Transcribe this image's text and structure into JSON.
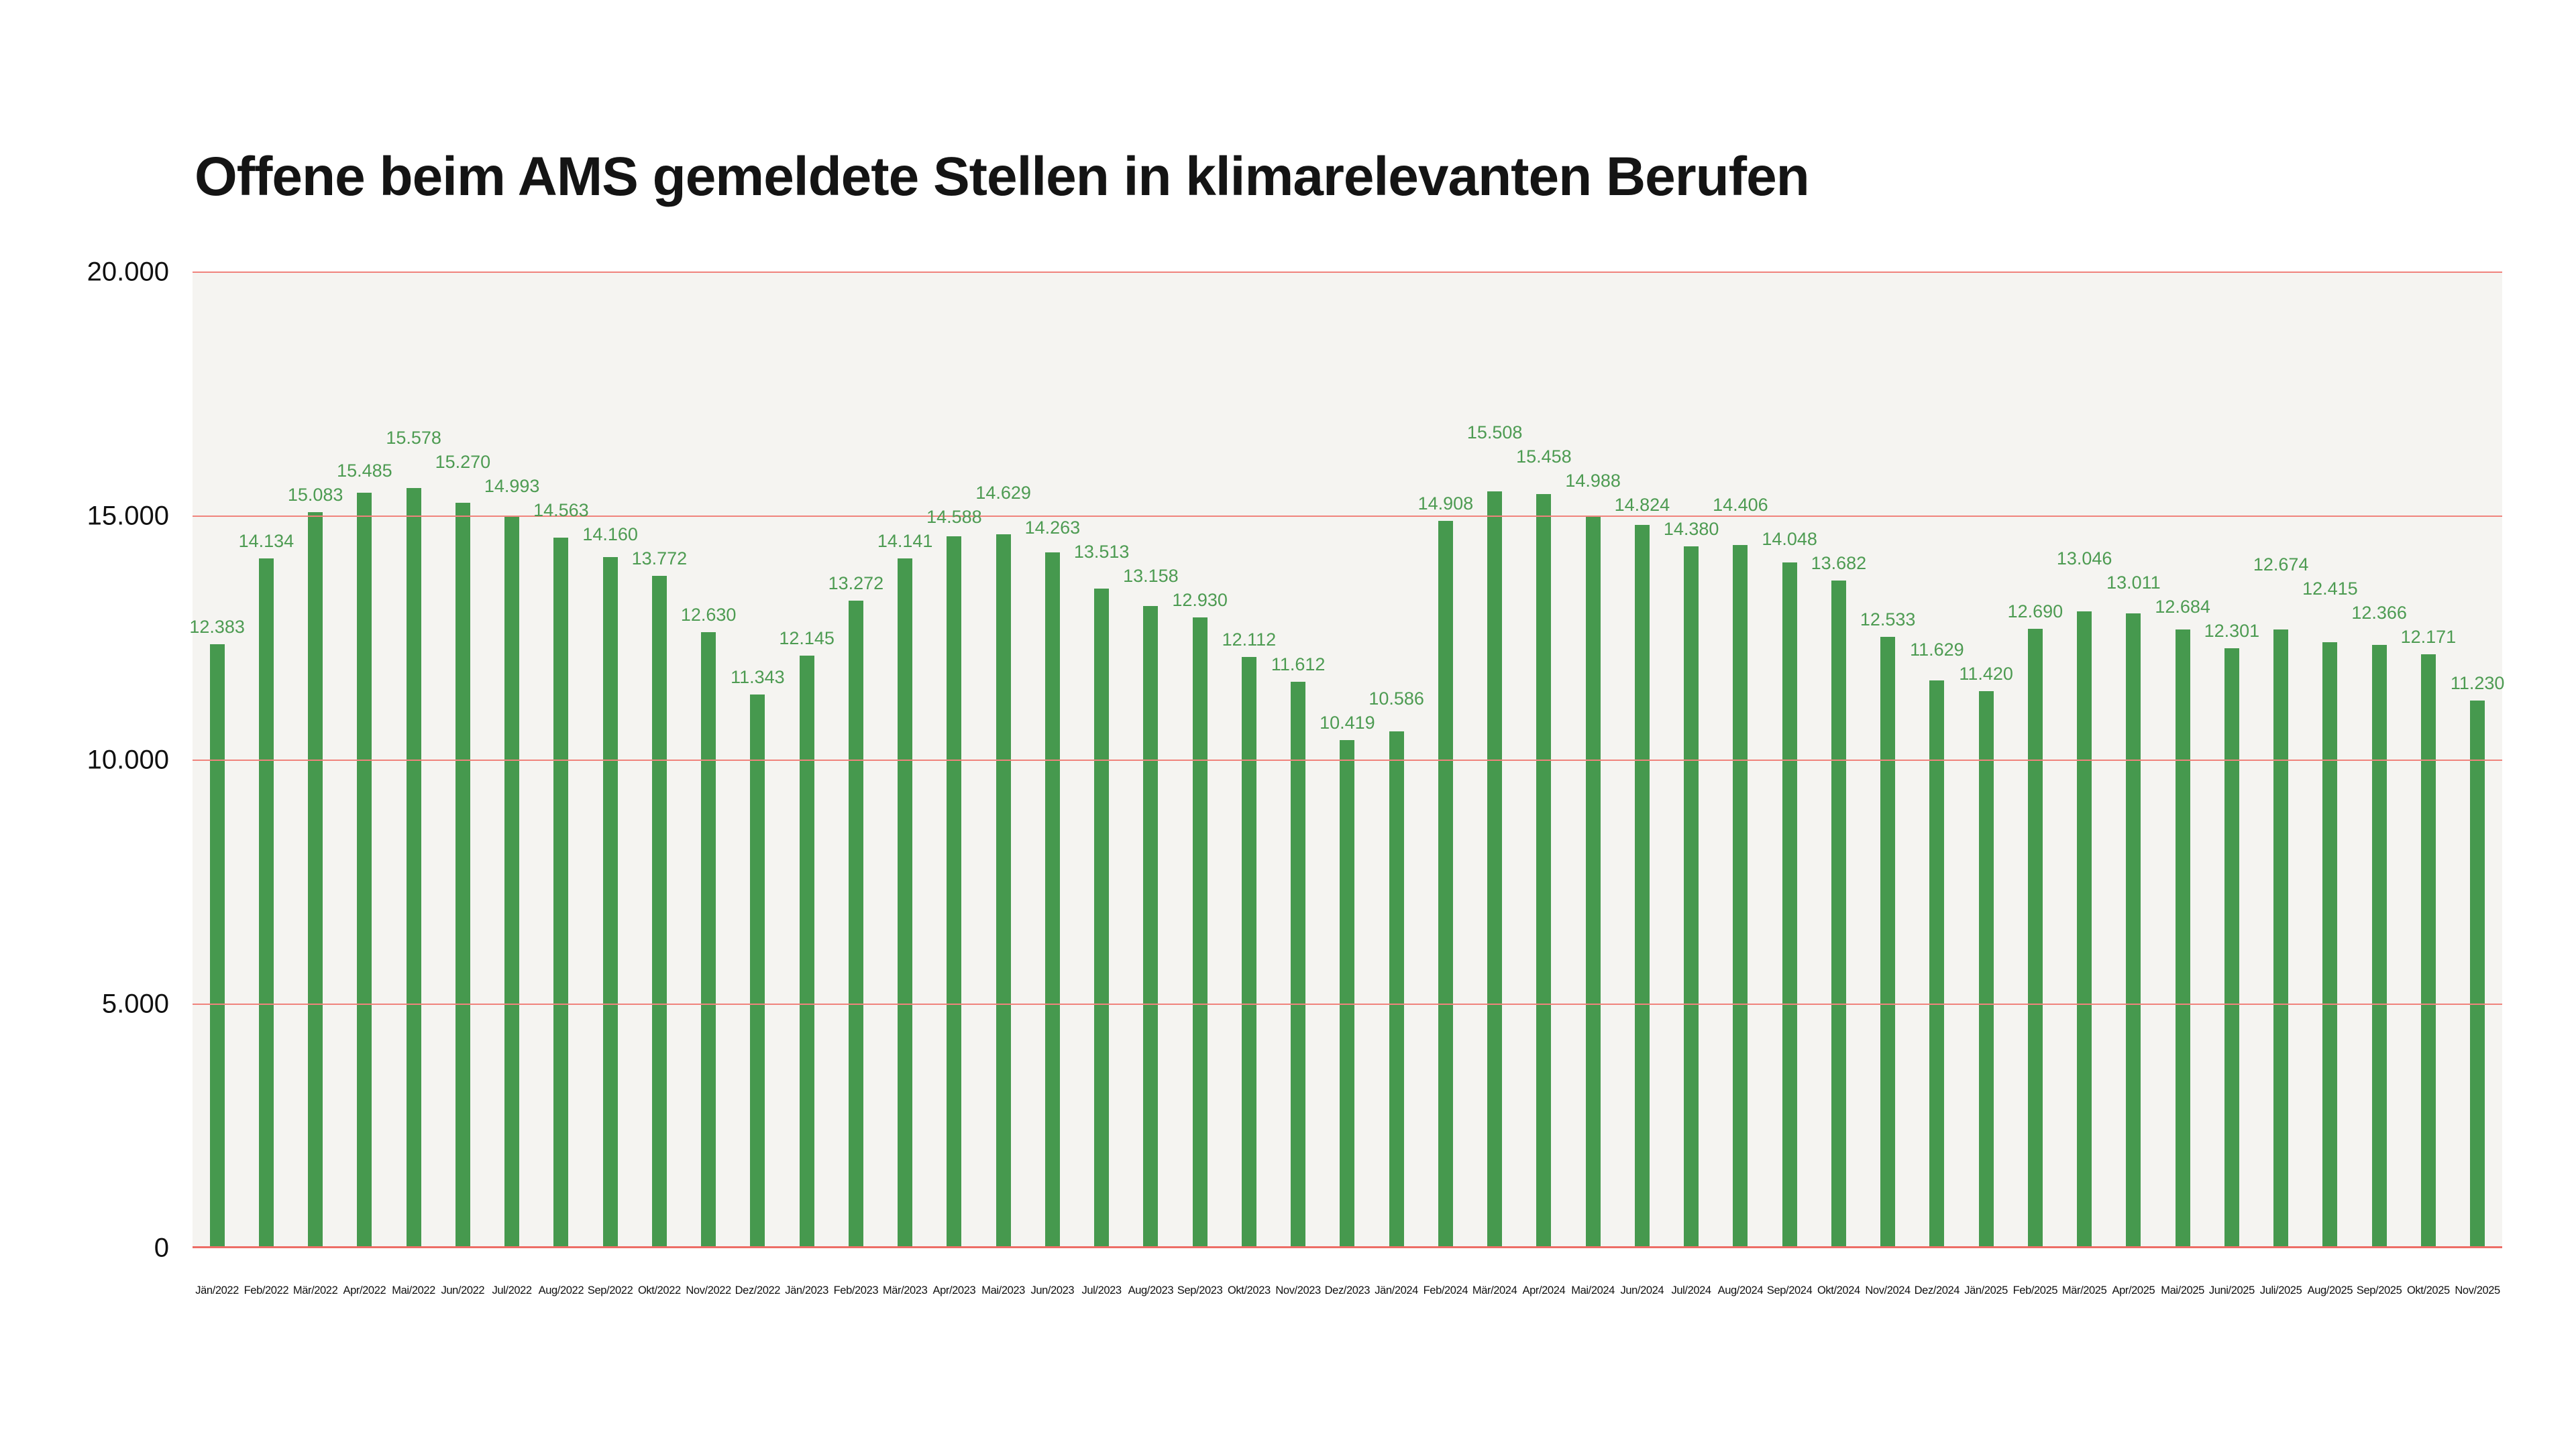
{
  "page": {
    "background": "#ffffff"
  },
  "header": {
    "title": "Offene beim AMS gemeldete Stellen in klimarelevanten Berufen"
  },
  "chart_data": {
    "type": "bar",
    "title": "Offene beim AMS gemeldete Stellen in klimarelevanten Berufen",
    "xlabel": "",
    "ylabel": "",
    "ylim": [
      0,
      20000
    ],
    "yticks": [
      20000,
      15000,
      10000,
      5000,
      0
    ],
    "ytick_labels": [
      "20.000",
      "15.000",
      "10.000",
      "5.000",
      "0"
    ],
    "grid": "horizontal",
    "legend_position": "none",
    "categories": [
      "Jän/2022",
      "Feb/2022",
      "Mär/2022",
      "Apr/2022",
      "Mai/2022",
      "Jun/2022",
      "Jul/2022",
      "Aug/2022",
      "Sep/2022",
      "Okt/2022",
      "Nov/2022",
      "Dez/2022",
      "Jän/2023",
      "Feb/2023",
      "Mär/2023",
      "Apr/2023",
      "Mai/2023",
      "Jun/2023",
      "Jul/2023",
      "Aug/2023",
      "Sep/2023",
      "Okt/2023",
      "Nov/2023",
      "Dez/2023",
      "Jän/2024",
      "Feb/2024",
      "Mär/2024",
      "Apr/2024",
      "Mai/2024",
      "Jun/2024",
      "Jul/2024",
      "Aug/2024",
      "Sep/2024",
      "Okt/2024",
      "Nov/2024",
      "Dez/2024",
      "Jän/2025",
      "Feb/2025",
      "Mär/2025",
      "Apr/2025",
      "Mai/2025",
      "Juni/2025",
      "Juli/2025",
      "Aug/2025",
      "Sep/2025",
      "Okt/2025",
      "Nov/2025"
    ],
    "values": [
      12383,
      14134,
      15083,
      15485,
      15578,
      15270,
      14993,
      14563,
      14160,
      13772,
      12630,
      11343,
      12145,
      13272,
      14141,
      14588,
      14629,
      14263,
      13513,
      13158,
      12930,
      12112,
      11612,
      10419,
      10586,
      14908,
      15508,
      15458,
      14988,
      14824,
      14380,
      14406,
      14048,
      13682,
      12533,
      11629,
      11420,
      12690,
      13046,
      13011,
      12684,
      12301,
      12674,
      12415,
      12366,
      12171,
      11230
    ],
    "value_labels": [
      "12.383",
      "14.134",
      "15.083",
      "15.485",
      "15.578",
      "15.270",
      "14.993",
      "14.563",
      "14.160",
      "13.772",
      "12.630",
      "11.343",
      "12.145",
      "13.272",
      "14.141",
      "14.588",
      "14.629",
      "14.263",
      "13.513",
      "13.158",
      "12.930",
      "12.112",
      "11.612",
      "10.419",
      "10.586",
      "14.908",
      "15.508",
      "15.458",
      "14.988",
      "14.824",
      "14.380",
      "14.406",
      "14.048",
      "13.682",
      "12.533",
      "11.629",
      "11.420",
      "12.690",
      "13.046",
      "13.011",
      "12.684",
      "12.301",
      "12.674",
      "12.415",
      "12.366",
      "12.171",
      "11.230"
    ],
    "colors": {
      "bar": "#46994e",
      "value_label": "#4d9b52",
      "gridline": "#f0837c",
      "baseline": "#ed6d66",
      "plot_background": "#f5f4f1",
      "title_text": "#141414",
      "axis_text": "#111111"
    }
  }
}
